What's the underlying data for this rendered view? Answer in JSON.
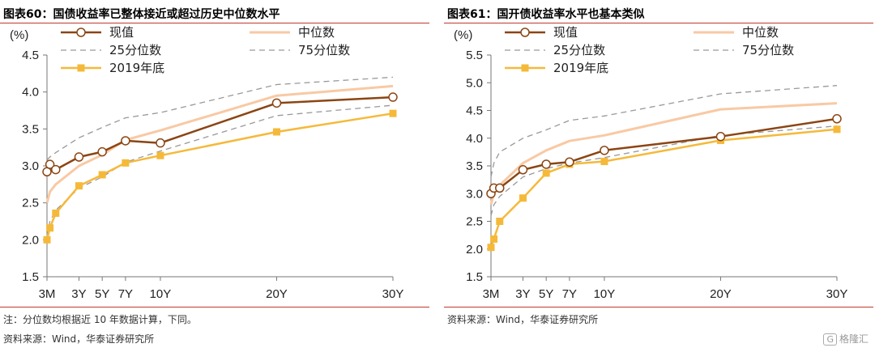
{
  "charts": [
    {
      "fig_label": "图表60：",
      "fig_title": "国债收益率已整体接近或超过历史中位数水平",
      "notes": [
        "注：分位数均根据近 10 年数据计算，下同。",
        "资料来源：Wind，华泰证券研究所"
      ]
    },
    {
      "fig_label": "图表61：",
      "fig_title": "国开债收益率水平也基本类似",
      "notes": [
        "资料来源：Wind，华泰证券研究所"
      ]
    }
  ],
  "watermark": {
    "icon": "G",
    "text": "格隆汇"
  },
  "chart_data": [
    {
      "type": "line",
      "title": "国债收益率已整体接近或超过历史中位数水平",
      "ylabel": "(%)",
      "ylim": [
        1.5,
        4.5
      ],
      "yticks": [
        "4.5",
        "4.0",
        "3.5",
        "3.0",
        "2.5",
        "2.0",
        "1.5"
      ],
      "xlim": [
        0.25,
        30
      ],
      "xticks": [
        {
          "label": "3M",
          "x": 0.25
        },
        {
          "label": "3Y",
          "x": 3
        },
        {
          "label": "5Y",
          "x": 5
        },
        {
          "label": "7Y",
          "x": 7
        },
        {
          "label": "10Y",
          "x": 10
        },
        {
          "label": "20Y",
          "x": 20
        },
        {
          "label": "30Y",
          "x": 30
        }
      ],
      "x": [
        0.25,
        0.5,
        1,
        3,
        5,
        7,
        10,
        20,
        30
      ],
      "grid": false,
      "legend": "top",
      "series": [
        {
          "name": "现值",
          "values": [
            2.92,
            3.02,
            2.95,
            3.12,
            3.19,
            3.34,
            3.31,
            3.85,
            3.93
          ],
          "color": "#8b4513",
          "style": "solid",
          "marker": "circle"
        },
        {
          "name": "中位数",
          "values": [
            2.5,
            2.65,
            2.75,
            3.0,
            3.15,
            3.35,
            3.48,
            3.95,
            4.08
          ],
          "color": "#f8c9a4",
          "style": "solid",
          "marker": "none"
        },
        {
          "name": "25分位数",
          "values": [
            2.05,
            2.25,
            2.4,
            2.7,
            2.85,
            3.05,
            3.2,
            3.68,
            3.82
          ],
          "color": "#999999",
          "style": "dashed",
          "marker": "none"
        },
        {
          "name": "75分位数",
          "values": [
            3.08,
            3.12,
            3.18,
            3.38,
            3.52,
            3.65,
            3.72,
            4.1,
            4.2
          ],
          "color": "#999999",
          "style": "dashed",
          "marker": "none"
        },
        {
          "name": "2019年底",
          "values": [
            2.0,
            2.16,
            2.36,
            2.73,
            2.88,
            3.04,
            3.14,
            3.46,
            3.71
          ],
          "color": "#f5b93a",
          "style": "solid",
          "marker": "square"
        }
      ]
    },
    {
      "type": "line",
      "title": "国开债收益率水平也基本类似",
      "ylabel": "(%)",
      "ylim": [
        1.5,
        5.5
      ],
      "yticks": [
        "5.5",
        "5.0",
        "4.5",
        "4.0",
        "3.5",
        "3.0",
        "2.5",
        "2.0",
        "1.5"
      ],
      "xlim": [
        0.25,
        30
      ],
      "xticks": [
        {
          "label": "3M",
          "x": 0.25
        },
        {
          "label": "3Y",
          "x": 3
        },
        {
          "label": "5Y",
          "x": 5
        },
        {
          "label": "7Y",
          "x": 7
        },
        {
          "label": "10Y",
          "x": 10
        },
        {
          "label": "20Y",
          "x": 20
        },
        {
          "label": "30Y",
          "x": 30
        }
      ],
      "x": [
        0.25,
        0.5,
        1,
        3,
        5,
        7,
        10,
        20,
        30
      ],
      "grid": false,
      "legend": "top",
      "series": [
        {
          "name": "现值",
          "values": [
            3.0,
            3.1,
            3.1,
            3.43,
            3.53,
            3.57,
            3.78,
            4.03,
            4.35
          ],
          "color": "#8b4513",
          "style": "solid",
          "marker": "circle"
        },
        {
          "name": "中位数",
          "values": [
            2.8,
            3.0,
            3.15,
            3.55,
            3.78,
            3.95,
            4.05,
            4.52,
            4.63
          ],
          "color": "#f8c9a4",
          "style": "solid",
          "marker": "none"
        },
        {
          "name": "25分位数",
          "values": [
            2.6,
            2.8,
            2.95,
            3.3,
            3.45,
            3.55,
            3.65,
            4.05,
            4.22
          ],
          "color": "#999999",
          "style": "dashed",
          "marker": "none"
        },
        {
          "name": "75分位数",
          "values": [
            3.3,
            3.55,
            3.75,
            4.0,
            4.15,
            4.32,
            4.4,
            4.8,
            4.95
          ],
          "color": "#999999",
          "style": "dashed",
          "marker": "none"
        },
        {
          "name": "2019年底",
          "values": [
            2.03,
            2.18,
            2.5,
            2.92,
            3.37,
            3.53,
            3.58,
            3.96,
            4.16
          ],
          "color": "#f5b93a",
          "style": "solid",
          "marker": "square"
        }
      ]
    }
  ]
}
